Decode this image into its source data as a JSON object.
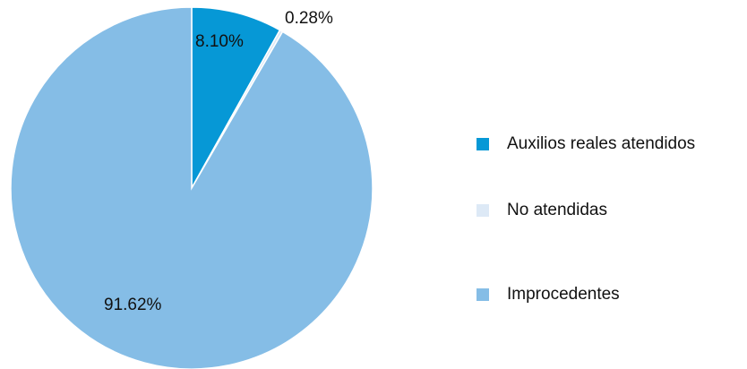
{
  "chart_data": {
    "type": "pie",
    "categories": [
      "Auxilios reales atendidos",
      "No atendidas",
      "Improcedentes"
    ],
    "values": [
      8.1,
      0.28,
      91.62
    ],
    "data_labels": [
      "8.10%",
      "0.28%",
      "91.62%"
    ],
    "colors": [
      "#0698d6",
      "#dde9f6",
      "#85bde6"
    ],
    "title": "",
    "legend_position": "right"
  },
  "legend": {
    "items": [
      {
        "label": "Auxilios reales atendidos",
        "color": "#0698d6"
      },
      {
        "label": "No atendidas",
        "color": "#dde9f6"
      },
      {
        "label": "Improcedentes",
        "color": "#85bde6"
      }
    ]
  }
}
